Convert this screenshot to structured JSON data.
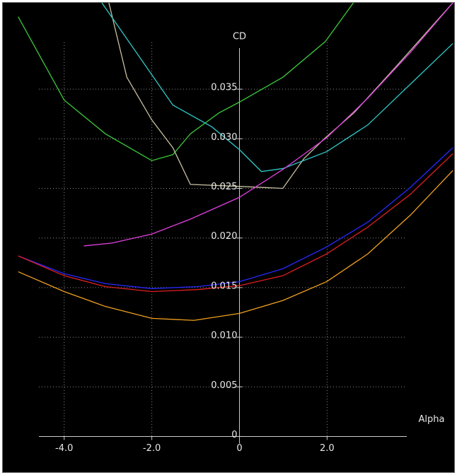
{
  "chart_data": {
    "type": "line",
    "x_label": "Alpha",
    "y_label": "CD",
    "xlim": [
      -5.4,
      4.9
    ],
    "ylim": [
      -0.0036,
      0.0437
    ],
    "xticks": [
      {
        "value": -4,
        "label": "-4.0"
      },
      {
        "value": -2,
        "label": "-2.0"
      },
      0,
      {
        "value": 2,
        "label": "2.0"
      }
    ],
    "yticks": [
      0,
      0.005,
      {
        "value": 0.01,
        "label": "0.010"
      },
      0.015,
      {
        "value": 0.02,
        "label": "0.020"
      },
      0.025,
      {
        "value": 0.03,
        "label": "0.030"
      },
      0.035
    ],
    "grid": true,
    "series": [
      {
        "color": "#3cc83c",
        "x": [
          -5.05,
          -4.0,
          -3.06,
          -2.0,
          -1.52,
          -1.12,
          -0.47,
          0,
          0.99,
          1.96,
          2.6
        ],
        "values": [
          0.0423,
          0.0339,
          0.0305,
          0.0278,
          0.0284,
          0.0305,
          0.0326,
          0.0337,
          0.0362,
          0.0398,
          0.0437
        ]
      },
      {
        "color": "#c8c0a0",
        "x": [
          -2.98,
          -2.57,
          -2.0,
          -1.52,
          -1.12,
          0,
          0.99,
          1.47,
          1.96,
          2.61,
          3.58,
          4.87
        ],
        "values": [
          0.0437,
          0.0362,
          0.0319,
          0.0291,
          0.0254,
          0.0252,
          0.025,
          0.028,
          0.0301,
          0.0326,
          0.0373,
          0.0437
        ]
      },
      {
        "color": "#30c8c8",
        "x": [
          -3.14,
          -1.52,
          -0.63,
          0,
          0.5,
          0.99,
          1.99,
          2.93,
          3.9,
          4.87
        ],
        "values": [
          0.0437,
          0.0334,
          0.0312,
          0.0289,
          0.0267,
          0.027,
          0.0287,
          0.0314,
          0.0355,
          0.0396
        ]
      },
      {
        "color": "#e040e0",
        "x": [
          -3.55,
          -2.9,
          -2.0,
          -1.12,
          0,
          0.99,
          1.99,
          2.93,
          3.9,
          4.87
        ],
        "values": [
          0.0192,
          0.0195,
          0.0204,
          0.0219,
          0.0241,
          0.0269,
          0.0301,
          0.0341,
          0.0387,
          0.0437
        ]
      },
      {
        "color": "#2828ff",
        "x": [
          -5.05,
          -4.0,
          -3.06,
          -2.0,
          -0.96,
          0,
          0.99,
          1.99,
          2.93,
          3.9,
          4.87
        ],
        "values": [
          0.0182,
          0.0164,
          0.0154,
          0.0149,
          0.0151,
          0.0156,
          0.0169,
          0.0191,
          0.0216,
          0.0251,
          0.0291
        ]
      },
      {
        "color": "#e02020",
        "x": [
          -5.05,
          -4.0,
          -3.06,
          -2.0,
          -0.96,
          0,
          0.99,
          1.99,
          2.93,
          3.9,
          4.87
        ],
        "values": [
          0.0182,
          0.0162,
          0.0151,
          0.0146,
          0.0148,
          0.0152,
          0.0162,
          0.0184,
          0.0211,
          0.0244,
          0.0285
        ]
      },
      {
        "color": "#f0a020",
        "x": [
          -5.05,
          -4.0,
          -3.06,
          -2.0,
          -1.04,
          0,
          0.99,
          1.99,
          2.93,
          3.9,
          4.87
        ],
        "values": [
          0.0166,
          0.0146,
          0.0131,
          0.0119,
          0.0117,
          0.0124,
          0.0137,
          0.0156,
          0.0184,
          0.0223,
          0.0268
        ]
      }
    ]
  }
}
